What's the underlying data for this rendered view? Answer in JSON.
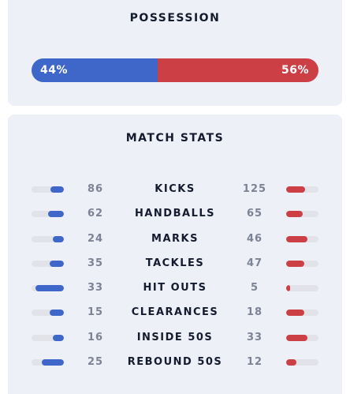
{
  "possession": {
    "title": "POSSESSION",
    "home_label": "44%",
    "away_label": "56%",
    "home_pct": 44,
    "away_pct": 56,
    "home_color": "#3f66c9",
    "away_color": "#cc3f44"
  },
  "match_stats": {
    "title": "MATCH STATS",
    "rows": [
      {
        "label": "KICKS",
        "home": "86",
        "away": "125",
        "home_fill": 0.41,
        "away_fill": 0.59
      },
      {
        "label": "HANDBALLS",
        "home": "62",
        "away": "65",
        "home_fill": 0.49,
        "away_fill": 0.51
      },
      {
        "label": "MARKS",
        "home": "24",
        "away": "46",
        "home_fill": 0.34,
        "away_fill": 0.66
      },
      {
        "label": "TACKLES",
        "home": "35",
        "away": "47",
        "home_fill": 0.43,
        "away_fill": 0.57
      },
      {
        "label": "HIT OUTS",
        "home": "33",
        "away": "5",
        "home_fill": 0.87,
        "away_fill": 0.13
      },
      {
        "label": "CLEARANCES",
        "home": "15",
        "away": "18",
        "home_fill": 0.45,
        "away_fill": 0.55
      },
      {
        "label": "INSIDE 50S",
        "home": "16",
        "away": "33",
        "home_fill": 0.33,
        "away_fill": 0.67
      },
      {
        "label": "REBOUND 50S",
        "home": "25",
        "away": "12",
        "home_fill": 0.68,
        "away_fill": 0.32
      }
    ]
  }
}
